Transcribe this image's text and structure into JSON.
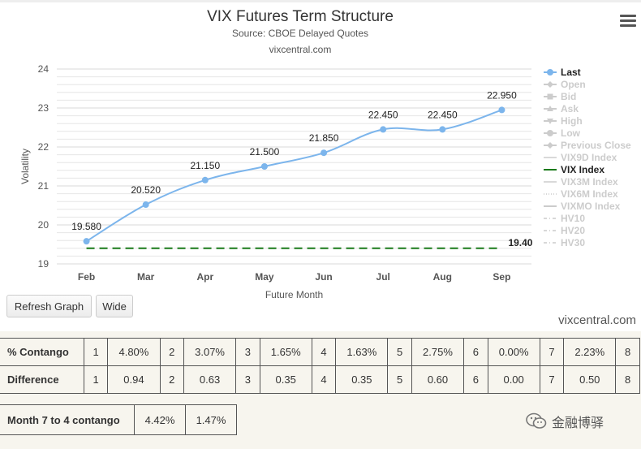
{
  "chart_data": {
    "type": "line",
    "title": "VIX Futures Term Structure",
    "subtitle": "Source: CBOE Delayed Quotes",
    "site": "vixcentral.com",
    "xlabel": "Future Month",
    "ylabel": "Volatility",
    "categories": [
      "Feb",
      "Mar",
      "Apr",
      "May",
      "Jun",
      "Jul",
      "Aug",
      "Sep"
    ],
    "ylim": [
      19,
      24
    ],
    "yticks": [
      "19",
      "20",
      "21",
      "22",
      "23",
      "24"
    ],
    "grid": true,
    "legend_position": "right",
    "series": [
      {
        "name": "Last",
        "values": [
          19.58,
          20.52,
          21.15,
          21.5,
          21.85,
          22.45,
          22.45,
          22.95
        ],
        "labels": [
          "19.580",
          "20.520",
          "21.150",
          "21.500",
          "21.850",
          "22.450",
          "22.450",
          "22.950"
        ],
        "color": "#7cb5ec"
      },
      {
        "name": "VIX Index",
        "values": [
          19.4,
          19.4,
          19.4,
          19.4,
          19.4,
          19.4,
          19.4,
          19.4
        ],
        "end_label": "19.40",
        "color": "#1a7a1a"
      }
    ],
    "legend": [
      {
        "name": "Last",
        "active": true,
        "symbol": "dot-line"
      },
      {
        "name": "Open",
        "active": false,
        "symbol": "diamond"
      },
      {
        "name": "Bid",
        "active": false,
        "symbol": "square"
      },
      {
        "name": "Ask",
        "active": false,
        "symbol": "triangle"
      },
      {
        "name": "High",
        "active": false,
        "symbol": "triangle-down"
      },
      {
        "name": "Low",
        "active": false,
        "symbol": "dot-line"
      },
      {
        "name": "Previous Close",
        "active": false,
        "symbol": "diamond"
      },
      {
        "name": "VIX9D Index",
        "active": false,
        "symbol": "line"
      },
      {
        "name": "VIX Index",
        "active": true,
        "symbol": "dash"
      },
      {
        "name": "VIX3M Index",
        "active": false,
        "symbol": "line"
      },
      {
        "name": "VIX6M Index",
        "active": false,
        "symbol": "dot"
      },
      {
        "name": "VIXMO Index",
        "active": false,
        "symbol": "dash"
      },
      {
        "name": "HV10",
        "active": false,
        "symbol": "dashdot"
      },
      {
        "name": "HV20",
        "active": false,
        "symbol": "dashdot"
      },
      {
        "name": "HV30",
        "active": false,
        "symbol": "dashdot"
      }
    ]
  },
  "colors": {
    "last_line": "#7cb5ec",
    "vix_index": "#1a7a1a",
    "legend_inactive": "#cccccc",
    "grid": "#e6e6e6"
  },
  "buttons": {
    "refresh": "Refresh Graph",
    "wide": "Wide"
  },
  "footer_site": "vixcentral.com",
  "stats": {
    "rows": [
      {
        "label": "% Contango",
        "cells": [
          [
            "1",
            "4.80%"
          ],
          [
            "2",
            "3.07%"
          ],
          [
            "3",
            "1.65%"
          ],
          [
            "4",
            "1.63%"
          ],
          [
            "5",
            "2.75%"
          ],
          [
            "6",
            "0.00%"
          ],
          [
            "7",
            "2.23%"
          ],
          [
            "8",
            ""
          ]
        ]
      },
      {
        "label": "Difference",
        "cells": [
          [
            "1",
            "0.94"
          ],
          [
            "2",
            "0.63"
          ],
          [
            "3",
            "0.35"
          ],
          [
            "4",
            "0.35"
          ],
          [
            "5",
            "0.60"
          ],
          [
            "6",
            "0.00"
          ],
          [
            "7",
            "0.50"
          ],
          [
            "8",
            ""
          ]
        ]
      }
    ]
  },
  "month_contango": {
    "label": "Month 7 to 4 contango",
    "values": [
      "4.42%",
      "1.47%"
    ]
  },
  "watermark": {
    "text": "金融博驿",
    "icon": "wechat-icon"
  },
  "menu_icon": "menu-icon"
}
